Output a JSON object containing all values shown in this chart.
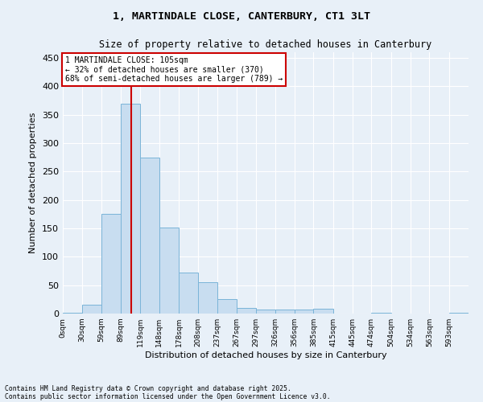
{
  "title1": "1, MARTINDALE CLOSE, CANTERBURY, CT1 3LT",
  "title2": "Size of property relative to detached houses in Canterbury",
  "xlabel": "Distribution of detached houses by size in Canterbury",
  "ylabel": "Number of detached properties",
  "bar_color": "#c8ddf0",
  "bar_edge_color": "#7ab4d8",
  "background_color": "#e8f0f8",
  "grid_color": "#ffffff",
  "property_line_x": 105,
  "property_line_color": "#cc0000",
  "annotation_text": "1 MARTINDALE CLOSE: 105sqm\n← 32% of detached houses are smaller (370)\n68% of semi-detached houses are larger (789) →",
  "annotation_box_color": "#cc0000",
  "footnote1": "Contains HM Land Registry data © Crown copyright and database right 2025.",
  "footnote2": "Contains public sector information licensed under the Open Government Licence v3.0.",
  "bin_edges": [
    0,
    30,
    59,
    89,
    119,
    148,
    178,
    208,
    237,
    267,
    297,
    326,
    356,
    385,
    415,
    445,
    474,
    504,
    534,
    563,
    593,
    623
  ],
  "bin_labels": [
    "0sqm",
    "30sqm",
    "59sqm",
    "89sqm",
    "119sqm",
    "148sqm",
    "178sqm",
    "208sqm",
    "237sqm",
    "267sqm",
    "297sqm",
    "326sqm",
    "356sqm",
    "385sqm",
    "415sqm",
    "445sqm",
    "474sqm",
    "504sqm",
    "534sqm",
    "563sqm",
    "593sqm"
  ],
  "bar_heights": [
    2,
    15,
    175,
    370,
    275,
    152,
    72,
    55,
    25,
    10,
    7,
    7,
    7,
    8,
    0,
    0,
    2,
    0,
    0,
    0,
    1
  ],
  "ylim": [
    0,
    460
  ],
  "yticks": [
    0,
    50,
    100,
    150,
    200,
    250,
    300,
    350,
    400,
    450
  ]
}
